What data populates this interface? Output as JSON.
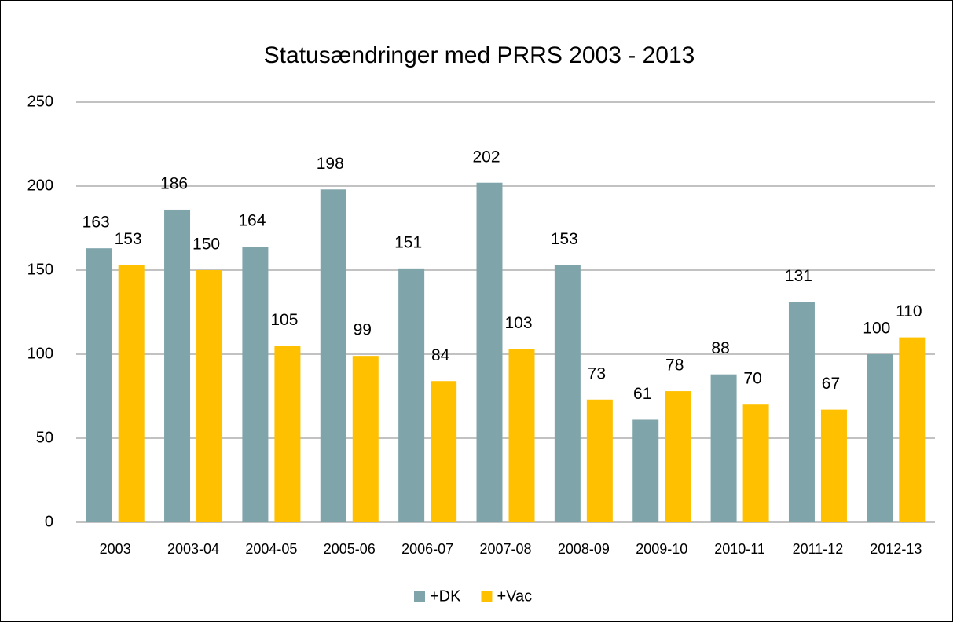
{
  "chart_data": {
    "type": "bar",
    "title": "Statusændringer med PRRS 2003 - 2013",
    "categories": [
      "2003",
      "2003-04",
      "2004-05",
      "2005-06",
      "2006-07",
      "2007-08",
      "2008-09",
      "2009-10",
      "2010-11",
      "2011-12",
      "2012-13"
    ],
    "series": [
      {
        "name": "+DK",
        "color": "#7fa5ab",
        "values": [
          163,
          186,
          164,
          198,
          151,
          202,
          153,
          61,
          88,
          131,
          100
        ]
      },
      {
        "name": "+Vac",
        "color": "#ffc000",
        "values": [
          153,
          150,
          105,
          99,
          84,
          103,
          73,
          78,
          70,
          67,
          110
        ]
      }
    ],
    "ylim": [
      0,
      250
    ],
    "yticks": [
      0,
      50,
      100,
      150,
      200,
      250
    ],
    "grid": true,
    "legend": "bottom"
  }
}
